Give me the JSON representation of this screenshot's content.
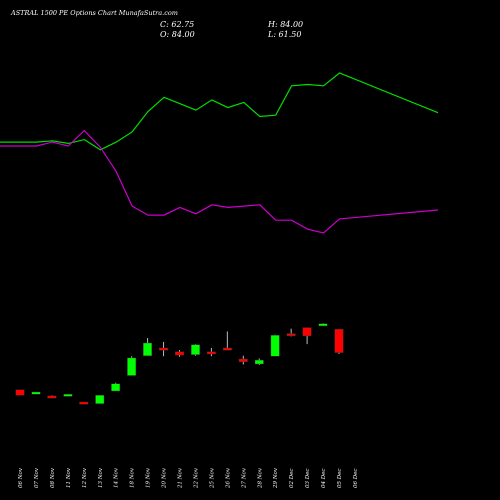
{
  "header": {
    "title": "ASTRAL 1500 PE Options Chart MunafaSutra.com",
    "close": "C: 62.75",
    "open": "O: 84.00",
    "high": "H: 84.00",
    "low": "L: 61.50"
  },
  "colors": {
    "background": "#000000",
    "bull": "#00ff00",
    "bear": "#ff0000",
    "line1": "#00dd00",
    "line2": "#cc00cc",
    "text": "#ffffff"
  },
  "chart_data": {
    "type": "candlestick",
    "price_range": [
      -2,
      145
    ],
    "categories": [
      "06 Nov",
      "07 Nov",
      "08 Nov",
      "11 Nov",
      "12 Nov",
      "13 Nov",
      "14 Nov",
      "18 Nov",
      "19 Nov",
      "20 Nov",
      "21 Nov",
      "22 Nov",
      "25 Nov",
      "26 Nov",
      "27 Nov",
      "28 Nov",
      "29 Nov",
      "02 Dec",
      "03 Dec",
      "04 Dec",
      "05 Dec",
      "06 Dec"
    ],
    "candles": [
      {
        "o": 29.0,
        "h": 29.0,
        "l": 24.0,
        "c": 24.0
      },
      {
        "o": 26.5,
        "h": 27.0,
        "l": 25.0,
        "c": 27.0
      },
      {
        "o": 23.5,
        "h": 24.0,
        "l": 21.5,
        "c": 22.0
      },
      {
        "o": 24.0,
        "h": 25.0,
        "l": 24.0,
        "c": 25.0
      },
      {
        "o": 18.0,
        "h": 18.0,
        "l": 16.5,
        "c": 16.5
      },
      {
        "o": 16.5,
        "h": 24.0,
        "l": 16.5,
        "c": 24.0
      },
      {
        "o": 28.0,
        "h": 35.5,
        "l": 28.0,
        "c": 34.5
      },
      {
        "o": 42.0,
        "h": 59.5,
        "l": 42.0,
        "c": 58.0
      },
      {
        "o": 60.0,
        "h": 76.0,
        "l": 60.0,
        "c": 71.5
      },
      {
        "o": 67.0,
        "h": 72.5,
        "l": 59.5,
        "c": 66.0
      },
      {
        "o": 63.5,
        "h": 65.0,
        "l": 59.0,
        "c": 60.5
      },
      {
        "o": 61.0,
        "h": 70.5,
        "l": 60.0,
        "c": 70.0
      },
      {
        "o": 63.5,
        "h": 67.0,
        "l": 59.5,
        "c": 62.0
      },
      {
        "o": 67.0,
        "h": 82.0,
        "l": 65.5,
        "c": 66.5
      },
      {
        "o": 57.0,
        "h": 60.0,
        "l": 52.0,
        "c": 54.5
      },
      {
        "o": 52.5,
        "h": 57.5,
        "l": 51.5,
        "c": 56.0
      },
      {
        "o": 59.5,
        "h": 79.0,
        "l": 59.5,
        "c": 78.5
      },
      {
        "o": 80.0,
        "h": 84.5,
        "l": 77.5,
        "c": 79.0
      },
      {
        "o": 85.5,
        "h": 85.5,
        "l": 70.5,
        "c": 78.0
      },
      {
        "o": 87.0,
        "h": 89.5,
        "l": 87.0,
        "c": 89.0
      },
      {
        "o": 84.0,
        "h": 84.0,
        "l": 61.5,
        "c": 62.75
      },
      {
        "o": null,
        "h": null,
        "l": null,
        "c": null
      }
    ],
    "series": [
      {
        "color": "#00dd00",
        "values": [
          121,
          121,
          122,
          120,
          123,
          115,
          121,
          129,
          145,
          156,
          151,
          146,
          154,
          148,
          152,
          141,
          142,
          165,
          166,
          165,
          175,
          144
        ]
      },
      {
        "color": "#cc00cc",
        "values": [
          118,
          118,
          121,
          118,
          130,
          117,
          98,
          71,
          64,
          64,
          70,
          65,
          72,
          70,
          71,
          72,
          60,
          60,
          53,
          50,
          61,
          68
        ]
      }
    ]
  }
}
